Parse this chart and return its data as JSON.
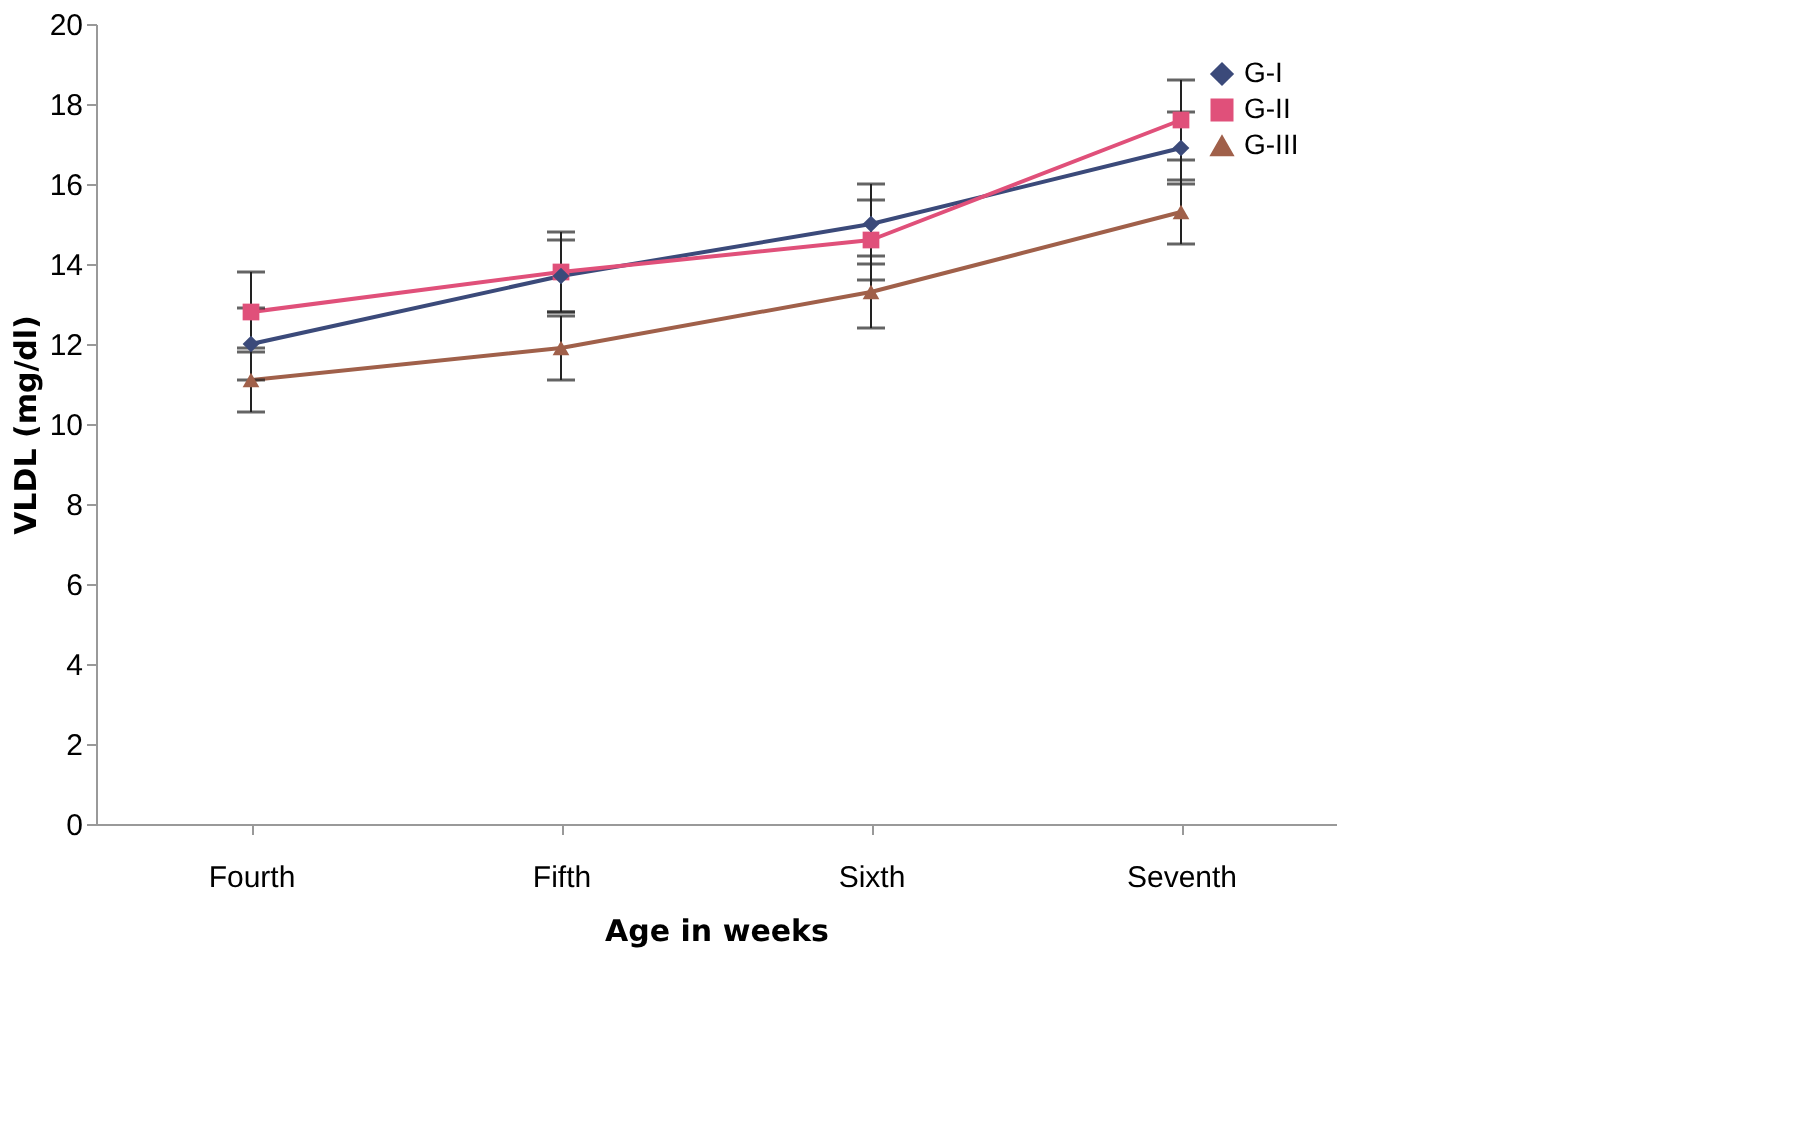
{
  "chart_data": {
    "type": "line",
    "xlabel": "Age in weeks",
    "ylabel": "VLDL (mg/dl)",
    "categories": [
      "Fourth",
      "Fifth",
      "Sixth",
      "Seventh"
    ],
    "ylim": [
      0,
      20
    ],
    "yticks": [
      0,
      2,
      4,
      6,
      8,
      10,
      12,
      14,
      16,
      18,
      20
    ],
    "grid": false,
    "legend": "top right",
    "series": [
      {
        "name": "G-I",
        "color": "#3b4a7a",
        "marker": "diamond",
        "values": [
          12.0,
          13.7,
          15.0,
          16.9
        ],
        "errors": [
          0.9,
          0.9,
          1.0,
          0.9
        ]
      },
      {
        "name": "G-II",
        "color": "#e0507a",
        "marker": "square",
        "values": [
          12.8,
          13.8,
          14.6,
          17.6
        ],
        "errors": [
          1.0,
          1.0,
          1.0,
          1.0
        ]
      },
      {
        "name": "G-III",
        "color": "#a0604a",
        "marker": "triangle",
        "values": [
          11.1,
          11.9,
          13.3,
          15.3
        ],
        "errors": [
          0.8,
          0.8,
          0.9,
          0.8
        ]
      }
    ]
  }
}
